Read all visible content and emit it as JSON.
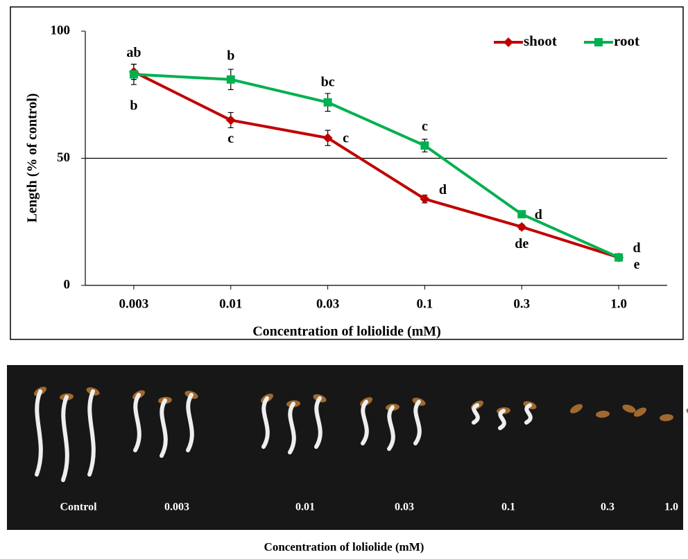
{
  "chart_data": {
    "type": "line",
    "x_label": "Concentration of loliolide (mM)",
    "y_label": "Length (% of control)",
    "categories": [
      "0.003",
      "0.01",
      "0.03",
      "0.1",
      "0.3",
      "1.0"
    ],
    "series": [
      {
        "name": "shoot",
        "color": "#c00000",
        "marker": "diamond",
        "values": [
          84,
          65,
          58,
          34,
          23,
          11
        ],
        "errors": [
          3,
          3,
          3,
          1.5,
          1,
          1
        ],
        "letters": [
          "b",
          "c",
          "c",
          "d",
          "de",
          "e"
        ]
      },
      {
        "name": "root",
        "color": "#00b050",
        "marker": "square",
        "values": [
          83,
          81,
          72,
          55,
          28,
          11
        ],
        "errors": [
          4,
          4,
          3.5,
          2.5,
          1,
          1
        ],
        "letters": [
          "ab",
          "b",
          "bc",
          "c",
          "d",
          "d"
        ]
      }
    ],
    "ylim": [
      0,
      100
    ],
    "yticks": [
      0,
      50,
      100
    ],
    "hline": 50,
    "legend": "upper right"
  },
  "photo": {
    "labels": [
      "Control",
      "0.003",
      "0.01",
      "0.03",
      "0.1",
      "0.3",
      "1.0"
    ],
    "caption": "Concentration  of loliolide  (mM)"
  }
}
